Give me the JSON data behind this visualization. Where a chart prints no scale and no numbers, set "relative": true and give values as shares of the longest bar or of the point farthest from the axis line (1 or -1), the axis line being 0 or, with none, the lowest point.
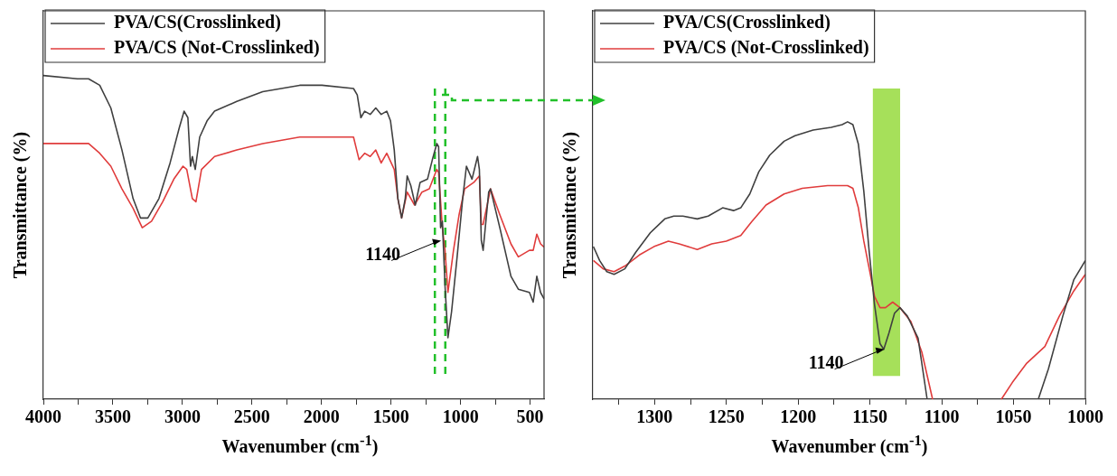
{
  "chart_data": [
    {
      "type": "line",
      "xlabel": "Wavenumber (cm$^{-1}$)",
      "ylabel": "Transmittance (%)",
      "relative": true,
      "legend": "top left",
      "xlim": [
        4000,
        400
      ],
      "xticks": [
        4000,
        {
          "value": 3750,
          "label": null
        },
        3500,
        {
          "value": 3250,
          "label": null
        },
        3000,
        {
          "value": 2750,
          "label": null
        },
        2500,
        {
          "value": 2250,
          "label": null
        },
        2000,
        {
          "value": 1750,
          "label": null
        },
        1500,
        {
          "value": 1250,
          "label": null
        },
        1000,
        {
          "value": 750,
          "label": null
        },
        500
      ],
      "ref_lines": [
        {
          "axis": "x",
          "value": 1185,
          "color": "#22c02a",
          "line_style": "dashed"
        },
        {
          "axis": "x",
          "value": 1110,
          "color": "#22c02a",
          "line_style": "dashed"
        }
      ],
      "series": [
        {
          "name": "PVA/CS(Crosslinked)",
          "color": "#404040",
          "x": [
            4000,
            3755,
            3675,
            3595,
            3515,
            3435,
            3355,
            3302,
            3249,
            3169,
            3089,
            3022,
            2988,
            2961,
            2942,
            2929,
            2908,
            2876,
            2823,
            2769,
            2609,
            2423,
            2157,
            1997,
            1770,
            1743,
            1717,
            1690,
            1650,
            1610,
            1571,
            1531,
            1504,
            1477,
            1451,
            1424,
            1398,
            1384,
            1358,
            1326,
            1291,
            1238,
            1203,
            1171,
            1158,
            1144,
            1131,
            1112,
            1091,
            1065,
            1025,
            985,
            958,
            918,
            878,
            865,
            851,
            838,
            798,
            785,
            718,
            638,
            585,
            505,
            478,
            452,
            425,
            400
          ],
          "values": [
            1.0,
            0.99,
            0.99,
            0.97,
            0.9,
            0.77,
            0.62,
            0.56,
            0.56,
            0.62,
            0.73,
            0.84,
            0.89,
            0.87,
            0.72,
            0.75,
            0.71,
            0.81,
            0.86,
            0.89,
            0.92,
            0.95,
            0.97,
            0.97,
            0.96,
            0.94,
            0.87,
            0.89,
            0.88,
            0.9,
            0.88,
            0.89,
            0.86,
            0.77,
            0.62,
            0.56,
            0.62,
            0.69,
            0.66,
            0.6,
            0.67,
            0.68,
            0.74,
            0.79,
            0.78,
            0.53,
            0.55,
            0.35,
            0.19,
            0.27,
            0.44,
            0.62,
            0.72,
            0.68,
            0.75,
            0.71,
            0.49,
            0.46,
            0.64,
            0.65,
            0.53,
            0.38,
            0.34,
            0.33,
            0.3,
            0.38,
            0.33,
            0.31
          ]
        },
        {
          "name": "PVA/CS (Not-Crosslinked)",
          "color": "#e03c3c",
          "x": [
            4000,
            3755,
            3675,
            3595,
            3515,
            3435,
            3355,
            3289,
            3222,
            3142,
            3062,
            2996,
            2969,
            2929,
            2903,
            2863,
            2769,
            2609,
            2423,
            2157,
            1770,
            1730,
            1690,
            1650,
            1610,
            1571,
            1531,
            1477,
            1451,
            1424,
            1384,
            1331,
            1278,
            1225,
            1171,
            1158,
            1131,
            1112,
            1091,
            1051,
            1011,
            971,
            905,
            865,
            851,
            838,
            785,
            718,
            638,
            585,
            505,
            478,
            452,
            425,
            400
          ],
          "values": [
            0.79,
            0.79,
            0.79,
            0.76,
            0.72,
            0.65,
            0.59,
            0.53,
            0.55,
            0.61,
            0.68,
            0.72,
            0.71,
            0.62,
            0.61,
            0.71,
            0.75,
            0.77,
            0.79,
            0.81,
            0.81,
            0.74,
            0.76,
            0.75,
            0.77,
            0.73,
            0.76,
            0.71,
            0.62,
            0.56,
            0.64,
            0.6,
            0.64,
            0.65,
            0.71,
            0.7,
            0.53,
            0.46,
            0.33,
            0.46,
            0.57,
            0.65,
            0.67,
            0.69,
            0.54,
            0.54,
            0.65,
            0.57,
            0.48,
            0.44,
            0.46,
            0.46,
            0.51,
            0.48,
            0.47
          ]
        }
      ],
      "annotations": [
        {
          "text": "1140",
          "x": 1140,
          "y": 0.49
        }
      ]
    },
    {
      "type": "line",
      "xlabel": "Wavenumber (cm$^{-1}$)",
      "ylabel": "Transmittance (%)",
      "relative": true,
      "legend": "top left",
      "xlim": [
        1343,
        1000
      ],
      "xticks": [
        {
          "value": 1325,
          "label": null
        },
        1300,
        {
          "value": 1275,
          "label": null
        },
        1250,
        {
          "value": 1225,
          "label": null
        },
        1200,
        {
          "value": 1175,
          "label": null
        },
        1150,
        {
          "value": 1125,
          "label": null
        },
        1100,
        {
          "value": 1075,
          "label": null
        },
        1050,
        {
          "value": 1025,
          "label": null
        },
        1000
      ],
      "bands": [
        {
          "axis": "x",
          "from": 1148,
          "to": 1129,
          "color": "#a6e05a"
        }
      ],
      "series": [
        {
          "name": "PVA/CS(Crosslinked)",
          "color": "#404040",
          "x": [
            1342.6,
            1338.3,
            1333.3,
            1328.2,
            1320.7,
            1313.1,
            1303,
            1292.9,
            1286.6,
            1280.3,
            1270.3,
            1262.7,
            1252.6,
            1245,
            1240,
            1233.7,
            1227.4,
            1219.8,
            1209.8,
            1202.2,
            1189.6,
            1177,
            1169.4,
            1165.6,
            1161.9,
            1158.1,
            1154.3,
            1150.5,
            1146.8,
            1143,
            1140.4,
            1136.7,
            1132.9,
            1129.1,
            1124,
            1116.5,
            1110.2,
            1070,
            1032.8,
            1025.7,
            1015.7,
            1008.1,
            1000
          ],
          "values": [
            0.55,
            0.5,
            0.46,
            0.45,
            0.47,
            0.53,
            0.6,
            0.65,
            0.66,
            0.66,
            0.65,
            0.66,
            0.69,
            0.68,
            0.69,
            0.74,
            0.82,
            0.88,
            0.93,
            0.95,
            0.97,
            0.98,
            0.99,
            1.0,
            0.99,
            0.92,
            0.75,
            0.53,
            0.34,
            0.2,
            0.18,
            0.24,
            0.31,
            0.33,
            0.3,
            0.22,
            0,
            null,
            0,
            0.11,
            0.3,
            0.43,
            0.5
          ]
        },
        {
          "name": "PVA/CS (Not-Crosslinked)",
          "color": "#e03c3c",
          "x": [
            1342.6,
            1335.8,
            1328.2,
            1320.7,
            1310.6,
            1300.5,
            1290.4,
            1282.9,
            1270.3,
            1260.2,
            1250.1,
            1240,
            1232.4,
            1222.4,
            1209.8,
            1197.2,
            1179.5,
            1165.6,
            1161.9,
            1158.1,
            1154.3,
            1150.5,
            1146.8,
            1143,
            1139.2,
            1134.2,
            1129.1,
            1121.5,
            1113.9,
            1106.4,
            1080,
            1058.5,
            1050.9,
            1040.8,
            1028.2,
            1018.1,
            1008.1,
            1000
          ],
          "values": [
            0.5,
            0.47,
            0.46,
            0.48,
            0.52,
            0.55,
            0.57,
            0.56,
            0.54,
            0.56,
            0.57,
            0.59,
            0.64,
            0.7,
            0.74,
            0.76,
            0.77,
            0.77,
            0.76,
            0.69,
            0.57,
            0.47,
            0.37,
            0.33,
            0.33,
            0.35,
            0.33,
            0.28,
            0.17,
            0,
            null,
            0,
            0.06,
            0.13,
            0.19,
            0.3,
            0.39,
            0.45
          ]
        }
      ],
      "annotations": [
        {
          "text": "1140",
          "x": 1140,
          "y": 0.18
        }
      ]
    }
  ]
}
